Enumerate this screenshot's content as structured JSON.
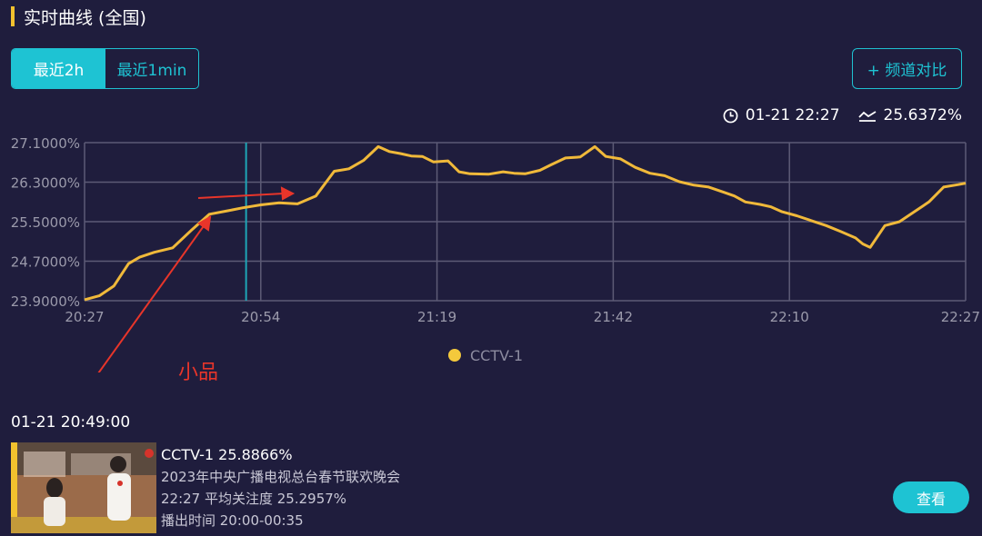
{
  "header": {
    "title": "实时曲线 (全国)"
  },
  "range_tabs": {
    "options": [
      "最近2h",
      "最近1min"
    ],
    "selected": "最近2h"
  },
  "compare_button": {
    "label": "+ 频道对比"
  },
  "readout": {
    "time": "01-21 22:27",
    "value": "25.6372%"
  },
  "annotation": {
    "label": "小品"
  },
  "snapshot": {
    "time": "01-21 20:49:00",
    "channel_line": "CCTV-1 25.8866%",
    "program": "2023年中央广播电视总台春节联欢晚会",
    "avg_line": "22:27 平均关注度 25.2957%",
    "airtime": "播出时间 20:00-00:35",
    "view_button": "查看"
  },
  "colors": {
    "background": "#1f1d3d",
    "accent": "#1ec3d3",
    "line": "#f0b93a",
    "annotation": "#e8352a"
  },
  "chart_data": {
    "type": "line",
    "x_ticks": [
      "20:27",
      "20:54",
      "21:19",
      "21:42",
      "22:10",
      "22:27"
    ],
    "y_ticks": [
      "23.9000%",
      "24.7000%",
      "25.5000%",
      "26.3000%",
      "27.1000%"
    ],
    "ylim": [
      23.9,
      27.1
    ],
    "xlim_minutes": [
      0,
      120
    ],
    "legend": {
      "entries": [
        "CCTV-1"
      ],
      "position": "bottom-center"
    },
    "grid": true,
    "cursor_x": 22,
    "series": [
      {
        "name": "CCTV-1",
        "color": "#f0b93a",
        "x": [
          0,
          2,
          4,
          6,
          7.5,
          9.5,
          12,
          14.5,
          17,
          19.5,
          21.5,
          24,
          26.5,
          29,
          31.5,
          34,
          36,
          38,
          40,
          41.5,
          43,
          44.5,
          46,
          47.5,
          49.5,
          51,
          52.5,
          55,
          57,
          58.5,
          60,
          62,
          63.5,
          65.5,
          67.5,
          69.5,
          71,
          73,
          75,
          77,
          79,
          81,
          83,
          85,
          87,
          88.5,
          90,
          92,
          93.5,
          95,
          97,
          99,
          101,
          103,
          105,
          106,
          107,
          109,
          111,
          113,
          115,
          117,
          119,
          120
        ],
        "y": [
          23.92,
          24.0,
          24.2,
          24.65,
          24.78,
          24.88,
          24.97,
          25.32,
          25.65,
          25.72,
          25.78,
          25.84,
          25.88,
          25.86,
          26.02,
          26.52,
          26.57,
          26.74,
          27.02,
          26.92,
          26.88,
          26.83,
          26.82,
          26.71,
          26.73,
          26.51,
          26.47,
          26.46,
          26.51,
          26.48,
          26.47,
          26.54,
          26.65,
          26.79,
          26.81,
          27.02,
          26.82,
          26.77,
          26.6,
          26.48,
          26.43,
          26.31,
          26.24,
          26.2,
          26.1,
          26.02,
          25.9,
          25.85,
          25.8,
          25.7,
          25.62,
          25.52,
          25.42,
          25.3,
          25.17,
          25.05,
          24.98,
          25.42,
          25.5,
          25.7,
          25.9,
          26.2,
          26.25,
          26.28
        ]
      }
    ]
  }
}
